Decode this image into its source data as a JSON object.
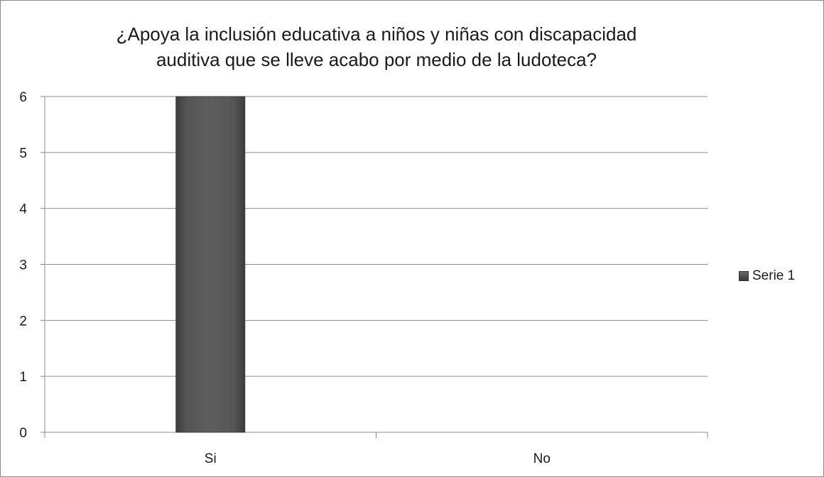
{
  "chart_data": {
    "type": "bar",
    "title_lines": [
      "¿Apoya la inclusión educativa a niños y niñas con discapacidad",
      "auditiva que se lleve acabo por medio de la ludoteca?"
    ],
    "categories": [
      "Si",
      "No"
    ],
    "series": [
      {
        "name": "Serie 1",
        "values": [
          6,
          0
        ],
        "color": "#4a4a4a"
      }
    ],
    "ylim": [
      0,
      6
    ],
    "yticks": [
      0,
      1,
      2,
      3,
      4,
      5,
      6
    ],
    "grid": true,
    "legend_position": "right",
    "colors": {
      "bar": "#4a4a4a",
      "grid": "#8c8c8c",
      "axis": "#8c8c8c"
    }
  }
}
